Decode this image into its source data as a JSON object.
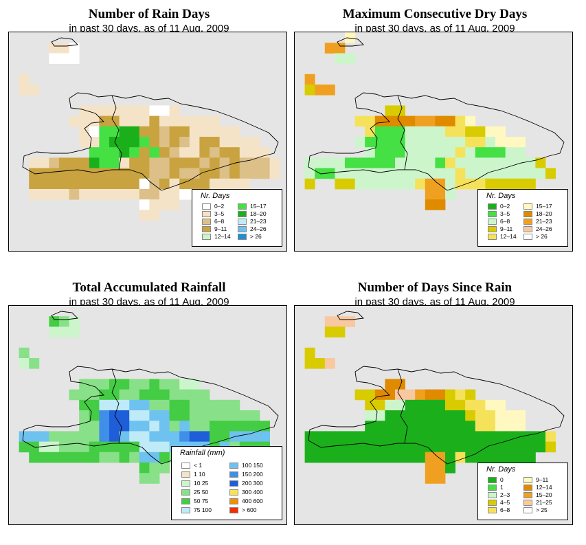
{
  "panels": [
    {
      "title": "Number of Rain Days",
      "subtitle": "in past 30 days, as of  11 Aug. 2009",
      "legend_title": "Nr. Days",
      "legend": [
        {
          "label": "0–2",
          "color": "#ffffff"
        },
        {
          "label": "3–5",
          "color": "#f5e3c8"
        },
        {
          "label": "6–8",
          "color": "#dcc088"
        },
        {
          "label": "9–11",
          "color": "#c9a340"
        },
        {
          "label": "12–14",
          "color": "#ccf5cc"
        },
        {
          "label": "15–17",
          "color": "#44e044"
        },
        {
          "label": "18–20",
          "color": "#1bb01b"
        },
        {
          "label": "21–23",
          "color": "#bfeaf7"
        },
        {
          "label": "24–26",
          "color": "#6ec2f0"
        },
        {
          "label": "> 26",
          "color": "#1e90d0"
        }
      ],
      "palette": [
        "#e5e5e5",
        "#ffffff",
        "#f5e3c8",
        "#dcc088",
        "#c9a340",
        "#ccf5cc",
        "#44e044",
        "#1bb01b"
      ],
      "grid": [
        "0000000000000000000000000000",
        "0000221000000000000000000000",
        "0000111000000000000000000000",
        "0000000000000000000000000000",
        "0200000000000000000000000000",
        "0220000000000000000000000000",
        "0000000000000000000000000000",
        "0000000222222211200000000000",
        "0000002224422242222220000000",
        "0000000216677443442222200000",
        "0000000226777643432442222000",
        "0000000066676464322434422200",
        "0022344476624433444343433320",
        "0044444444444433433443433320",
        "0044444444444134244422220000",
        "0022223222222332211000000000",
        "0000000000000122200000000000",
        "0000000000000220000000000000",
        "0000000000000000000000000000",
        "0000000000000000000000000000",
        "0000000000000000000000000000"
      ]
    },
    {
      "title": "Maximum Consecutive Dry Days",
      "subtitle": "in past 30 days, as of  11 Aug. 2009",
      "legend_title": "Nr. Days",
      "legend": [
        {
          "label": "0–2",
          "color": "#1bb01b"
        },
        {
          "label": "3–5",
          "color": "#44e044"
        },
        {
          "label": "6–8",
          "color": "#ccf5cc"
        },
        {
          "label": "9–11",
          "color": "#d8cc00"
        },
        {
          "label": "12–14",
          "color": "#f5e25a"
        },
        {
          "label": "15–17",
          "color": "#fff8c0"
        },
        {
          "label": "18–20",
          "color": "#e08a00"
        },
        {
          "label": "21–23",
          "color": "#f0a020"
        },
        {
          "label": "24–26",
          "color": "#f8c8a0"
        },
        {
          "label": "> 26",
          "color": "#ffffff"
        }
      ],
      "palette": [
        "#e5e5e5",
        "#ccf5cc",
        "#44e044",
        "#d8cc00",
        "#f5e25a",
        "#fff8c0",
        "#e08a00",
        "#f0a020"
      ],
      "grid": [
        "0000050000000000000000000000",
        "0007700000000000000000000000",
        "0000110000000000000000000000",
        "0000000000000000000000000000",
        "0700000000000000000000000000",
        "0377000000000000000000000000",
        "0000000000000000000000000000",
        "0000000003300000000000000000",
        "0000004466667766450000000000",
        "0000000422211114433550000000",
        "0000001222211111144155500000",
        "0000000122211111412221100000",
        "0111122222111124111111113000",
        "0122111111111111411111111300",
        "0300331111114771444333330000",
        "0000000000000771000000000000",
        "0000000000000660000000000000",
        "0000000000000000000000000000",
        "0000000000000000000000000000",
        "0000000000000000000000000000",
        "0000000000000000000000000000"
      ]
    },
    {
      "title": "Total Accumulated Rainfall",
      "subtitle": "in past 30 days, as of  11 Aug. 2009",
      "legend_title": "Rainfall (mm)",
      "legend": [
        {
          "label": "< 1",
          "color": "#ffffff"
        },
        {
          "label": "1    10",
          "color": "#f5e3c8"
        },
        {
          "label": "10    25",
          "color": "#ccf5cc"
        },
        {
          "label": "25    50",
          "color": "#88e088"
        },
        {
          "label": "50    75",
          "color": "#44cc44"
        },
        {
          "label": "75  100",
          "color": "#bfeaf7"
        },
        {
          "label": "100  150",
          "color": "#6ec2f0"
        },
        {
          "label": "150  200",
          "color": "#3f8fe8"
        },
        {
          "label": "200  300",
          "color": "#1e5ed8"
        },
        {
          "label": "300  400",
          "color": "#f5e25a"
        },
        {
          "label": "400  600",
          "color": "#f09000"
        },
        {
          "label": "> 600",
          "color": "#f03000"
        }
      ],
      "palette": [
        "#e5e5e5",
        "#ffffff",
        "#f5e3c8",
        "#ccf5cc",
        "#88e088",
        "#44cc44",
        "#bfeaf7",
        "#6ec2f0",
        "#3f8fe8",
        "#1e5ed8"
      ],
      "grid": [
        "0000000000000000000000000000",
        "0000543000000000000000000000",
        "0000333000000000000000000000",
        "0000000000000000000000000000",
        "0400000000000000000000000000",
        "0340000000000000000000000000",
        "0000000000000000000000000000",
        "0000000444554454433000000000",
        "0000004445544555444400000000",
        "0000000556667744554444400000",
        "0000000458996677554444444000",
        "0000000448997767474455555500",
        "0777444448976677789955777700",
        "0553344455555666777757455500",
        "0055555554454775455544440000",
        "0000000000000544000000000000",
        "0000000000000440000000000000",
        "0000000000000000000000000000",
        "0000000000000000000000000000",
        "0000000000000000000000000000",
        "0000000000000000000000000000"
      ]
    },
    {
      "title": "Number of Days Since Rain",
      "subtitle": "in past 30 days, as of  11 Aug. 2009",
      "legend_title": "Nr. Days",
      "legend": [
        {
          "label": "0",
          "color": "#1bb01b"
        },
        {
          "label": "1",
          "color": "#44e044"
        },
        {
          "label": "2–3",
          "color": "#ccf5cc"
        },
        {
          "label": "4–5",
          "color": "#d8cc00"
        },
        {
          "label": "6–8",
          "color": "#f5e25a"
        },
        {
          "label": "9–11",
          "color": "#fff8c0"
        },
        {
          "label": "12–14",
          "color": "#e08a00"
        },
        {
          "label": "15–20",
          "color": "#f0a020"
        },
        {
          "label": "21–25",
          "color": "#f8c8a0"
        },
        {
          "label": "> 25",
          "color": "#ffffff"
        }
      ],
      "palette": [
        "#e5e5e5",
        "#1bb01b",
        "#44e044",
        "#ccf5cc",
        "#d8cc00",
        "#f5e25a",
        "#fff8c0",
        "#e08a00",
        "#f0a020",
        "#f8c8a0"
      ],
      "grid": [
        "0000000000000000000000000000",
        "0009990000000000000000000000",
        "0004400000000000000000000000",
        "0000000000000000000000000000",
        "0400000000000000000000000000",
        "0449000000000000000000000000",
        "0000000000000000000000000000",
        "0000000007700000000000000000",
        "0000004477998774540000000000",
        "0000000443311114455660000000",
        "0000000331111111145566600000",
        "0000000111111111115566600000",
        "0111111111111111111111111500",
        "0111111111111111111111111400",
        "0111111111111881511111110000",
        "0000000000000881000000000000",
        "0000000000000880000000000000",
        "0000000000000000000000000000",
        "0000000000000000000000000000",
        "0000000000000000000000000000",
        "0000000000000000000000000000"
      ]
    }
  ]
}
